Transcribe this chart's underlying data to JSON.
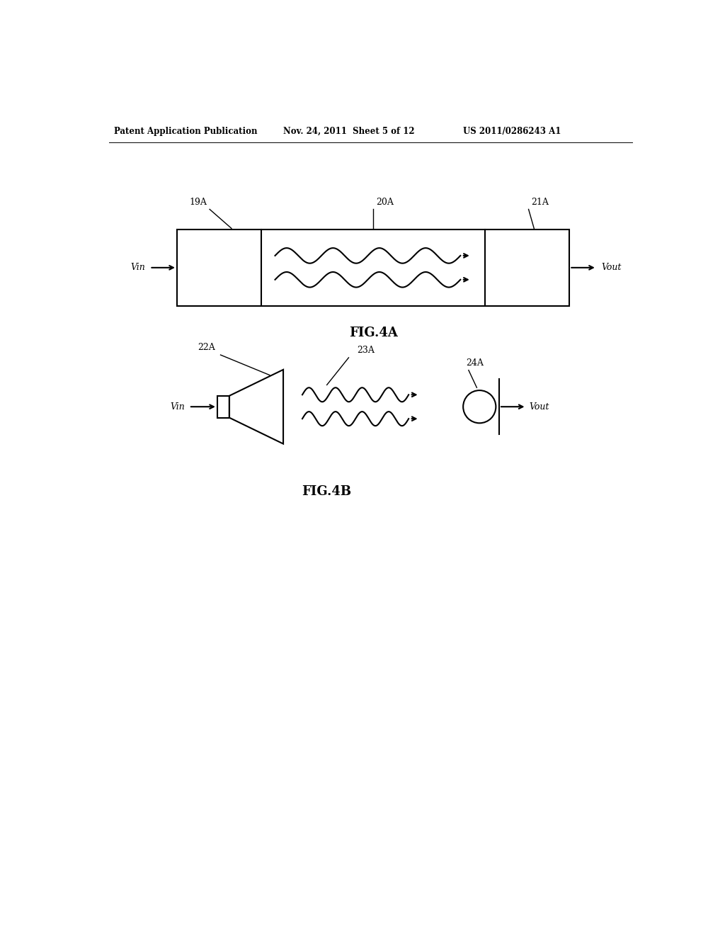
{
  "bg_color": "#ffffff",
  "line_color": "#000000",
  "header_text": "Patent Application Publication",
  "header_date": "Nov. 24, 2011  Sheet 5 of 12",
  "header_patent": "US 2011/0286243 A1",
  "fig4a_label": "FIG.4A",
  "fig4b_label": "FIG.4B",
  "label_19A": "19A",
  "label_20A": "20A",
  "label_21A": "21A",
  "label_22A": "22A",
  "label_23A": "23A",
  "label_24A": "24A",
  "vin_label": "Vin",
  "vout_label": "Vout"
}
